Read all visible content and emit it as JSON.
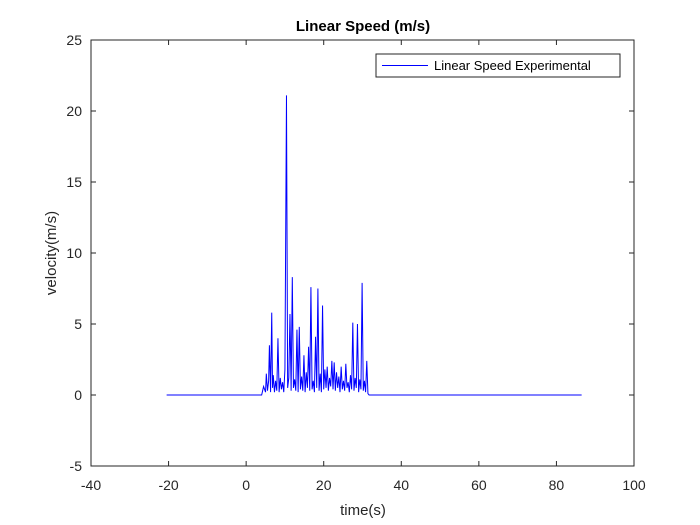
{
  "chart_data": {
    "type": "line",
    "title": "Linear Speed (m/s)",
    "xlabel": "time(s)",
    "ylabel": "velocity(m/s)",
    "xlim": [
      -40,
      100
    ],
    "ylim": [
      -5,
      25
    ],
    "xticks": [
      "-40",
      "-20",
      "0",
      "20",
      "40",
      "60",
      "80",
      "100"
    ],
    "yticks": [
      "-5",
      "0",
      "5",
      "10",
      "15",
      "20",
      "25"
    ],
    "grid": false,
    "legend_position": "top-right",
    "line_color": "#0000ff",
    "series": [
      {
        "name": "Linear Speed Experimental",
        "x": [
          -20.5,
          4.0,
          4.5,
          5.0,
          5.2,
          5.5,
          5.8,
          6.0,
          6.3,
          6.6,
          6.8,
          7.0,
          7.3,
          7.6,
          7.9,
          8.2,
          8.5,
          8.8,
          9.1,
          9.4,
          9.7,
          10.0,
          10.4,
          10.7,
          11.0,
          11.3,
          11.6,
          11.9,
          12.2,
          12.5,
          12.8,
          13.1,
          13.4,
          13.7,
          14.0,
          14.3,
          14.6,
          14.9,
          15.2,
          15.5,
          15.8,
          16.1,
          16.4,
          16.7,
          17.0,
          17.3,
          17.6,
          17.9,
          18.2,
          18.5,
          18.8,
          19.1,
          19.4,
          19.7,
          20.0,
          20.3,
          20.6,
          20.9,
          21.2,
          21.5,
          21.8,
          22.1,
          22.4,
          22.7,
          23.0,
          23.3,
          23.6,
          23.9,
          24.2,
          24.5,
          24.8,
          25.1,
          25.4,
          25.7,
          26.0,
          26.3,
          26.6,
          26.9,
          27.2,
          27.5,
          27.8,
          28.1,
          28.4,
          28.7,
          29.0,
          29.3,
          29.6,
          29.9,
          30.2,
          30.5,
          30.8,
          31.1,
          31.4,
          31.7,
          32.0,
          32.3,
          86.5
        ],
        "y": [
          0.0,
          0.0,
          0.6,
          0.2,
          1.5,
          0.3,
          1.0,
          3.5,
          0.2,
          5.8,
          0.5,
          1.4,
          0.2,
          1.0,
          0.3,
          4.0,
          0.2,
          1.2,
          0.4,
          0.9,
          0.2,
          1.8,
          21.1,
          0.5,
          1.2,
          5.7,
          0.3,
          8.3,
          0.5,
          1.1,
          0.3,
          4.6,
          0.2,
          4.8,
          0.4,
          1.3,
          0.3,
          2.8,
          0.2,
          1.6,
          0.5,
          3.4,
          0.3,
          7.6,
          0.4,
          1.0,
          0.2,
          4.1,
          0.5,
          7.5,
          0.3,
          1.5,
          0.2,
          6.3,
          0.4,
          1.8,
          0.5,
          2.0,
          0.3,
          1.2,
          0.6,
          2.4,
          0.4,
          2.3,
          0.3,
          1.6,
          0.5,
          1.3,
          0.2,
          2.0,
          0.4,
          1.0,
          0.3,
          2.2,
          0.5,
          0.9,
          0.2,
          1.4,
          0.4,
          5.1,
          0.3,
          1.2,
          0.5,
          5.0,
          0.2,
          1.1,
          0.4,
          7.9,
          0.3,
          1.0,
          0.2,
          2.4,
          0.1,
          0.0,
          0.0,
          0.0,
          0.0
        ]
      }
    ]
  }
}
